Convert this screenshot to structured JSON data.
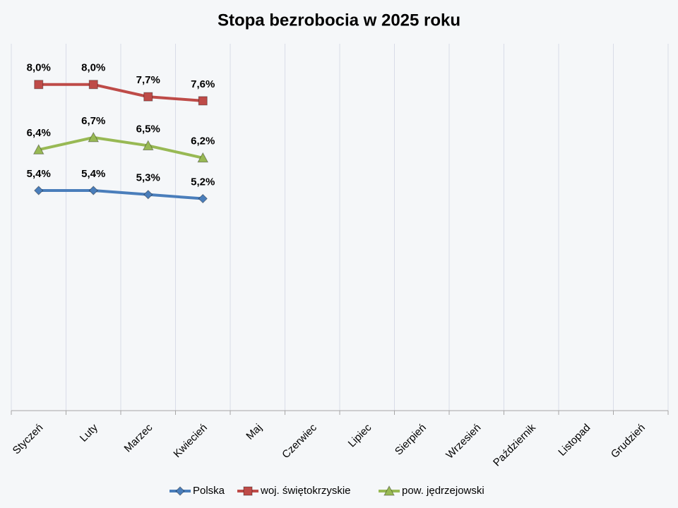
{
  "chart_data": {
    "type": "line",
    "title": "Stopa bezrobocia w 2025 roku",
    "categories": [
      "Styczeń",
      "Luty",
      "Marzec",
      "Kwiecień",
      "Maj",
      "Czerwiec",
      "Lipiec",
      "Sierpień",
      "Wrzesień",
      "Październik",
      "Listopad",
      "Grudzień"
    ],
    "series": [
      {
        "name": "Polska",
        "color": "#4a7ebb",
        "marker": "diamond",
        "values": [
          5.4,
          5.4,
          5.3,
          5.2,
          null,
          null,
          null,
          null,
          null,
          null,
          null,
          null
        ],
        "value_labels": [
          "5,4%",
          "5,4%",
          "5,3%",
          "5,2%",
          null,
          null,
          null,
          null,
          null,
          null,
          null,
          null
        ]
      },
      {
        "name": "woj. świętokrzyskie",
        "color": "#be4b48",
        "marker": "square",
        "values": [
          8.0,
          8.0,
          7.7,
          7.6,
          null,
          null,
          null,
          null,
          null,
          null,
          null,
          null
        ],
        "value_labels": [
          "8,0%",
          "8,0%",
          "7,7%",
          "7,6%",
          null,
          null,
          null,
          null,
          null,
          null,
          null,
          null
        ]
      },
      {
        "name": "pow. jędrzejowski",
        "color": "#98b954",
        "marker": "triangle",
        "values": [
          6.4,
          6.7,
          6.5,
          6.2,
          null,
          null,
          null,
          null,
          null,
          null,
          null,
          null
        ],
        "value_labels": [
          "6,4%",
          "6,7%",
          "6,5%",
          "6,2%",
          null,
          null,
          null,
          null,
          null,
          null,
          null,
          null
        ]
      }
    ],
    "ylim": [
      0,
      9
    ],
    "xgrid": true,
    "legend": "bottom"
  }
}
